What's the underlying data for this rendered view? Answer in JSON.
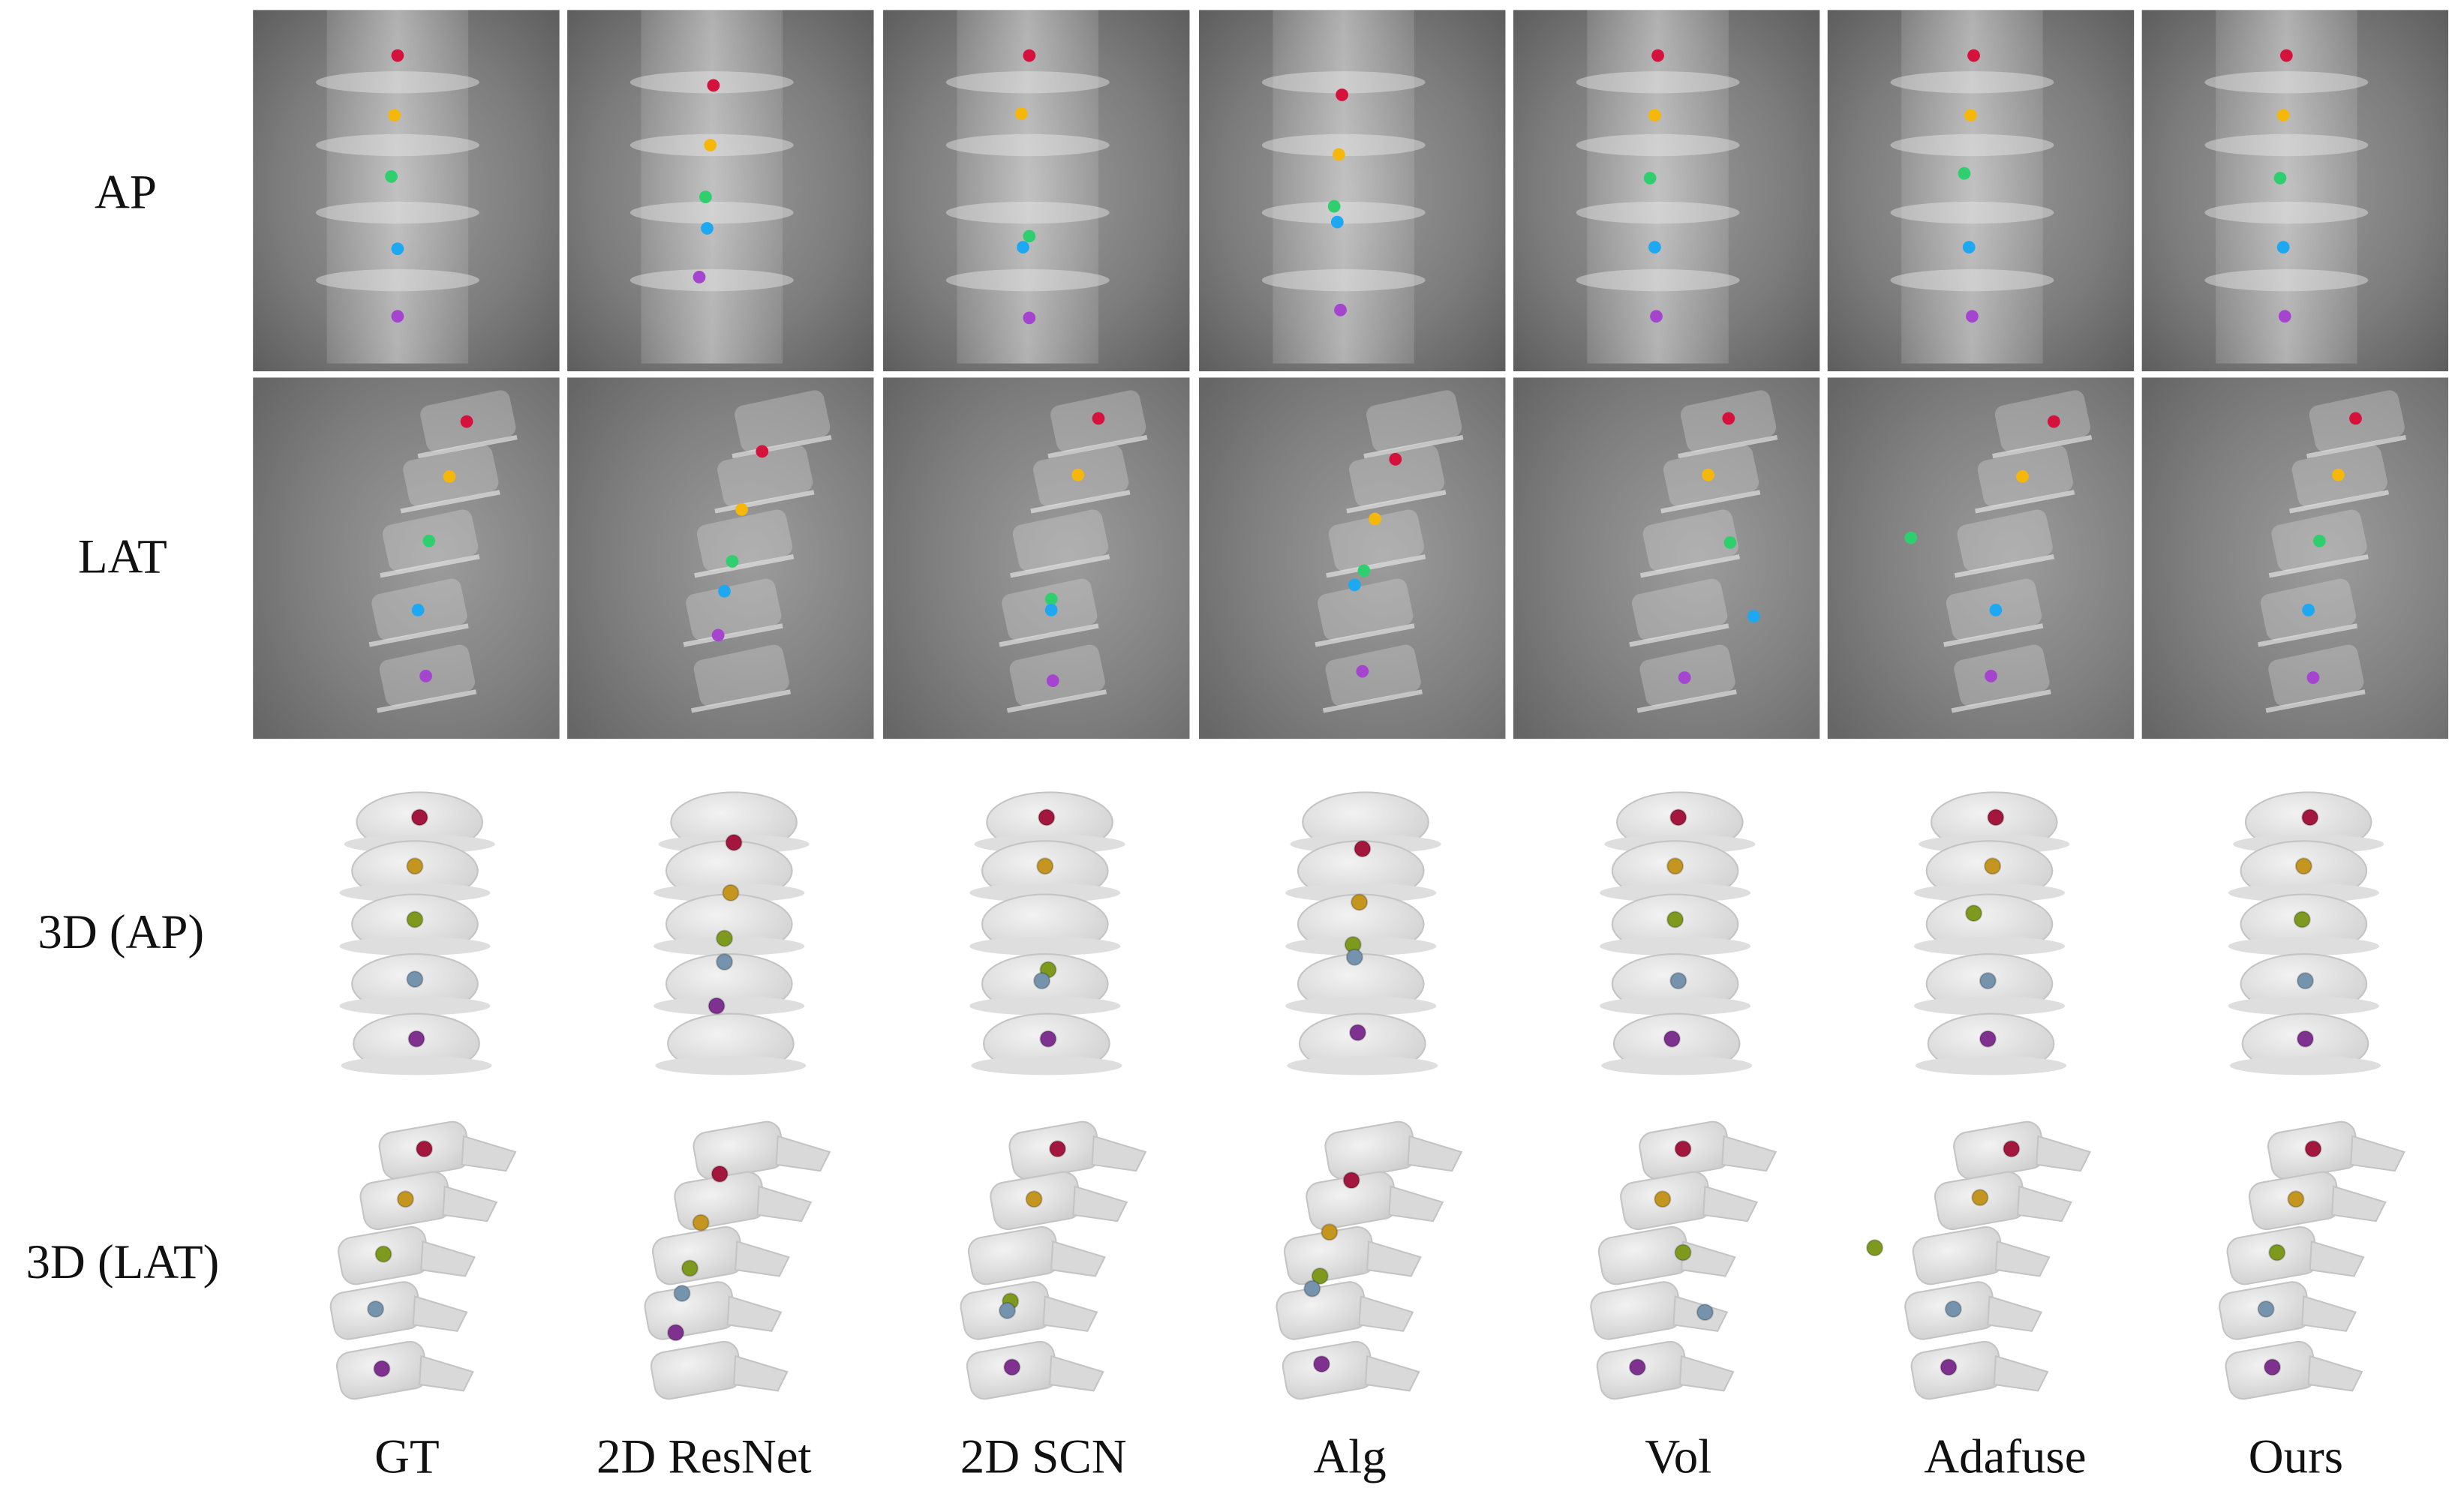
{
  "row_labels": [
    "AP",
    "LAT",
    "3D (AP)",
    "3D (LAT)"
  ],
  "column_labels": [
    "GT",
    "2D ResNet",
    "2D SCN",
    "Alg",
    "Vol",
    "Adafuse",
    "Ours"
  ]
}
